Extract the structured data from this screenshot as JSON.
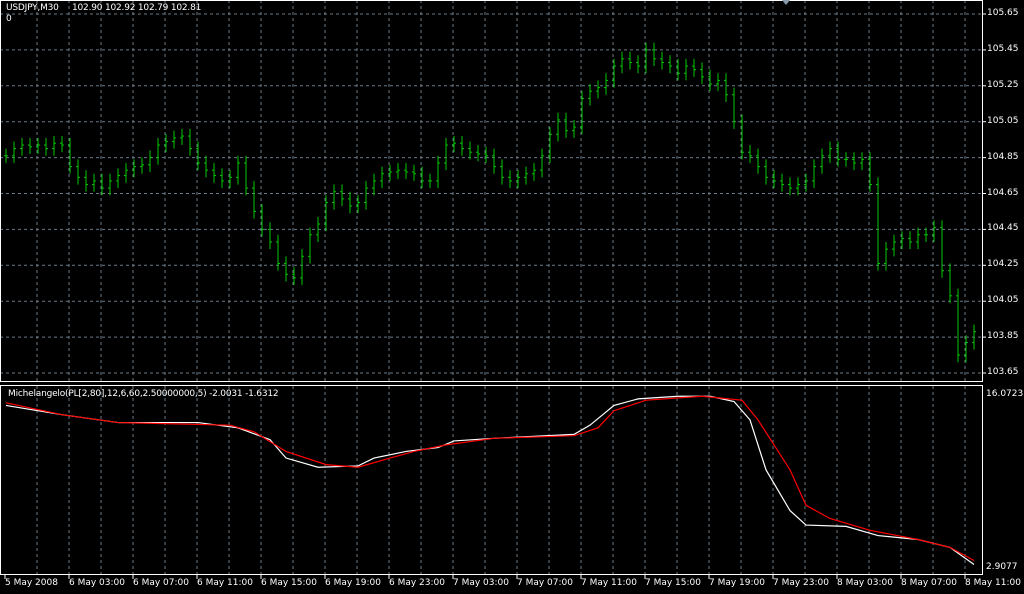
{
  "header": {
    "symbol": "USDJPY,M30",
    "ohlc": "102.90 102.92 102.79 102.81",
    "sub": "0"
  },
  "indicator": {
    "label": "Michelangelo(PL[2,80],12,6,60,2.50000000,5) -2.0031 -1.6312",
    "scale_max": "16.0723",
    "scale_min": "2.9077"
  },
  "colors": {
    "background": "#000000",
    "bars": "#00c800",
    "grid": "#6a7a8a",
    "line_main": "#ffffff",
    "line_signal": "#ff0000",
    "frame": "#ffffff"
  },
  "chart_data": [
    {
      "type": "ohlc-bars",
      "ylim": [
        103.65,
        105.65
      ],
      "price_ticks": [
        "105.65",
        "105.45",
        "105.25",
        "105.05",
        "104.85",
        "104.65",
        "104.45",
        "104.25",
        "104.05",
        "103.85",
        "103.65"
      ],
      "time_ticks": [
        "5 May 2008",
        "6 May 03:00",
        "6 May 07:00",
        "6 May 11:00",
        "6 May 15:00",
        "6 May 19:00",
        "6 May 23:00",
        "7 May 03:00",
        "7 May 07:00",
        "7 May 11:00",
        "7 May 15:00",
        "7 May 19:00",
        "7 May 23:00",
        "8 May 03:00",
        "8 May 07:00",
        "8 May 11:00"
      ],
      "grid": true,
      "closes": [
        104.86,
        104.9,
        104.92,
        104.91,
        104.92,
        104.9,
        104.93,
        104.92,
        104.8,
        104.74,
        104.7,
        104.72,
        104.68,
        104.72,
        104.75,
        104.78,
        104.8,
        104.81,
        104.85,
        104.92,
        104.94,
        104.96,
        104.97,
        104.9,
        104.82,
        104.78,
        104.75,
        104.72,
        104.74,
        104.82,
        104.68,
        104.55,
        104.45,
        104.38,
        104.26,
        104.2,
        104.18,
        104.3,
        104.42,
        104.48,
        104.6,
        104.66,
        104.62,
        104.58,
        104.6,
        104.68,
        104.72,
        104.76,
        104.77,
        104.78,
        104.77,
        104.76,
        104.72,
        104.72,
        104.82,
        104.92,
        104.93,
        104.9,
        104.88,
        104.87,
        104.86,
        104.8,
        104.74,
        104.72,
        104.74,
        104.76,
        104.78,
        104.86,
        104.98,
        105.06,
        105.0,
        105.02,
        105.18,
        105.22,
        105.24,
        105.28,
        105.36,
        105.4,
        105.38,
        105.36,
        105.45,
        105.4,
        105.38,
        105.36,
        105.32,
        105.36,
        105.34,
        105.3,
        105.26,
        105.28,
        105.2,
        105.05,
        104.88,
        104.86,
        104.8,
        104.74,
        104.72,
        104.7,
        104.68,
        104.7,
        104.72,
        104.8,
        104.86,
        104.9,
        104.84,
        104.84,
        104.82,
        104.84,
        104.7,
        104.26,
        104.34,
        104.38,
        104.4,
        104.38,
        104.42,
        104.42,
        104.46,
        104.22,
        104.08,
        103.75,
        103.82,
        103.88
      ]
    },
    {
      "type": "line",
      "ylim": [
        2.9077,
        16.0723
      ],
      "series": [
        {
          "color": "#ffffff",
          "points": [
            [
              0,
              15.2
            ],
            [
              7,
              14.5
            ],
            [
              14,
              13.9
            ],
            [
              24,
              13.9
            ],
            [
              29,
              13.5
            ],
            [
              33,
              12.6
            ],
            [
              35,
              11.2
            ],
            [
              39,
              10.5
            ],
            [
              44,
              10.6
            ],
            [
              46,
              11.2
            ],
            [
              50,
              11.7
            ],
            [
              54,
              12.0
            ],
            [
              56,
              12.5
            ],
            [
              61,
              12.7
            ],
            [
              71,
              13.0
            ],
            [
              73,
              13.7
            ],
            [
              76,
              15.2
            ],
            [
              79,
              15.7
            ],
            [
              84,
              15.9
            ],
            [
              88,
              15.9
            ],
            [
              91,
              15.5
            ],
            [
              93,
              14.1
            ],
            [
              95,
              10.3
            ],
            [
              98,
              7.2
            ],
            [
              100,
              6.1
            ],
            [
              105,
              6.0
            ],
            [
              109,
              5.3
            ],
            [
              114,
              5.0
            ],
            [
              118,
              4.4
            ],
            [
              121,
              3.1
            ]
          ]
        },
        {
          "color": "#ff0000",
          "points": [
            [
              0,
              15.4
            ],
            [
              7,
              14.5
            ],
            [
              14,
              13.9
            ],
            [
              28,
              13.7
            ],
            [
              31,
              13.2
            ],
            [
              35,
              11.7
            ],
            [
              40,
              10.7
            ],
            [
              44,
              10.5
            ],
            [
              48,
              11.2
            ],
            [
              51,
              11.7
            ],
            [
              55,
              12.2
            ],
            [
              61,
              12.7
            ],
            [
              71,
              12.9
            ],
            [
              74,
              13.5
            ],
            [
              76,
              14.8
            ],
            [
              80,
              15.6
            ],
            [
              87,
              15.9
            ],
            [
              92,
              15.6
            ],
            [
              94,
              14.1
            ],
            [
              98,
              10.3
            ],
            [
              100,
              7.6
            ],
            [
              103,
              6.6
            ],
            [
              108,
              5.7
            ],
            [
              114,
              5.0
            ],
            [
              118,
              4.4
            ],
            [
              121,
              3.4
            ]
          ]
        }
      ]
    }
  ]
}
